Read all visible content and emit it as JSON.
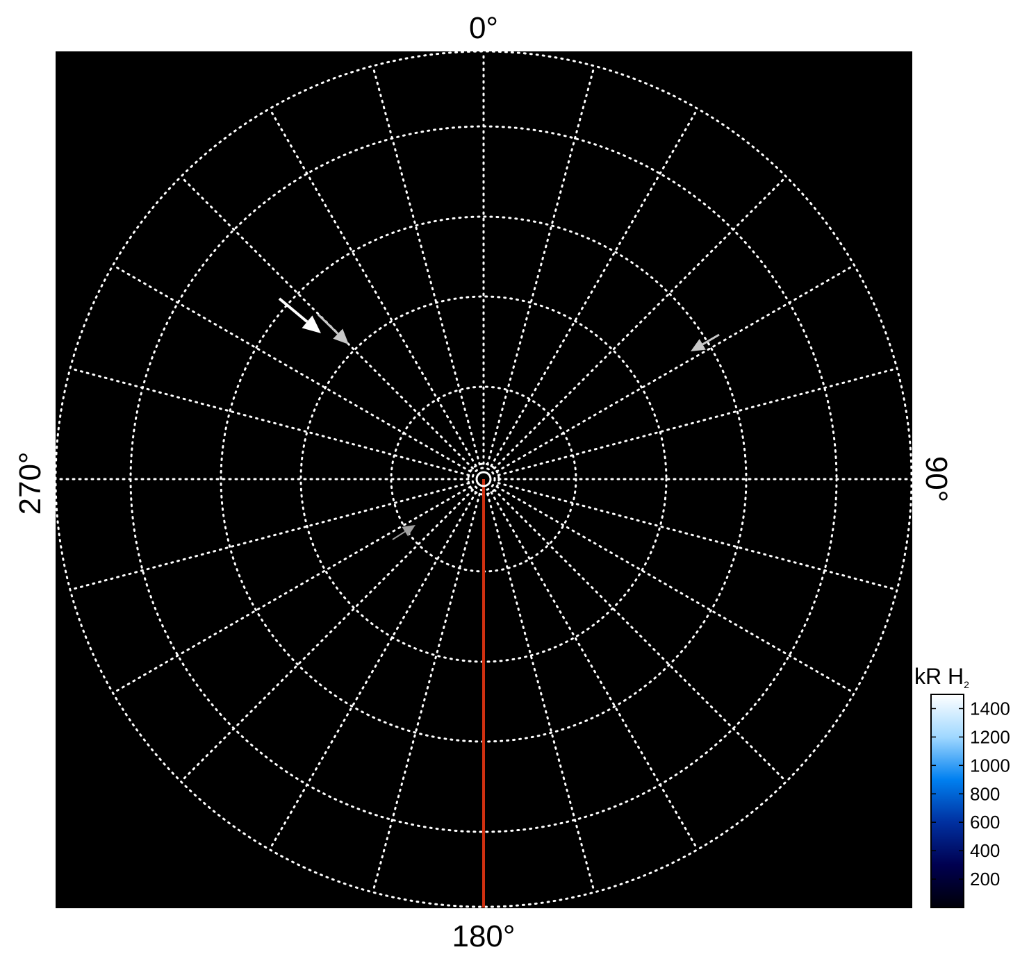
{
  "chart_data": {
    "type": "polar",
    "angle_labels": {
      "top": "0°",
      "right": "90°",
      "bottom": "180°",
      "left": "270°"
    },
    "spoke_spacing_deg": 15,
    "grid": true,
    "grid_style": "dotted white",
    "background": "#000000",
    "highlight_meridian": {
      "angle_deg": 180,
      "color": "#d03010"
    },
    "arrows": [
      {
        "color": "#ffffff",
        "direction": "toward center"
      },
      {
        "color": "#c8c8c8",
        "direction": "toward center"
      },
      {
        "color": "#c8c8c8",
        "direction": "toward center"
      },
      {
        "color": "#a0a0a0",
        "direction": "outward"
      }
    ],
    "colorbar": {
      "title": "kR H",
      "title_subscript": "2",
      "range": [
        0,
        1500
      ],
      "ticks": [
        "200",
        "400",
        "600",
        "800",
        "1000",
        "1200",
        "1400"
      ],
      "colors": [
        "#000008",
        "#000050",
        "#0030a0",
        "#0080f0",
        "#a0d8ff",
        "#ffffff"
      ],
      "location": "bottom-right"
    }
  }
}
